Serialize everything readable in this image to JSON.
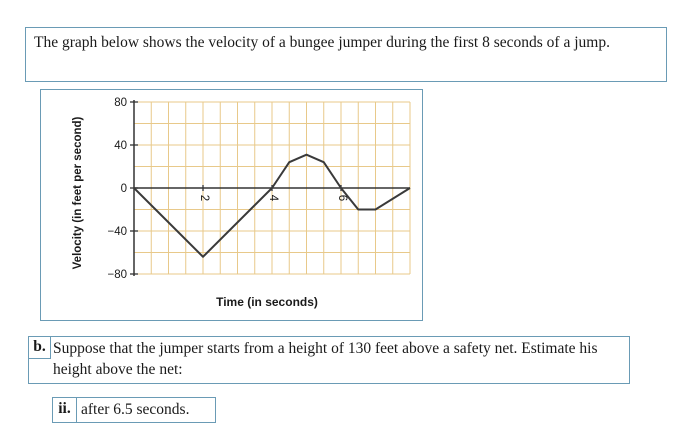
{
  "intro_text": "The graph below shows the velocity of a bungee jumper during the first 8 seconds of a jump.",
  "question_b": {
    "label": "b.",
    "text": "Suppose that the jumper starts from a height of 130 feet above a safety net. Estimate his height above the net:"
  },
  "question_ii": {
    "label": "ii.",
    "text": "after 6.5 seconds."
  },
  "colors": {
    "frame": "#6a9bb5",
    "grid": "#e8c98a",
    "line": "#3a3a3a"
  },
  "chart_data": {
    "type": "line",
    "xlabel": "Time (in seconds)",
    "ylabel": "Velocity (in feet per second)",
    "xlim": [
      0,
      8
    ],
    "ylim": [
      -80,
      80
    ],
    "x_ticks": [
      2,
      4,
      6
    ],
    "x_tick_labels": [
      "2",
      "4",
      "6"
    ],
    "y_ticks": [
      80,
      40,
      0,
      -40,
      -80
    ],
    "y_tick_labels": [
      "80",
      "40",
      "0",
      "−40",
      "−80"
    ],
    "grid": true,
    "series": [
      {
        "x": [
          0,
          2,
          4,
          4.5,
          5,
          5.5,
          6,
          6.5,
          7,
          8
        ],
        "y": [
          0,
          -64,
          0,
          24,
          31,
          24,
          0,
          -20,
          -20,
          0
        ]
      }
    ]
  }
}
